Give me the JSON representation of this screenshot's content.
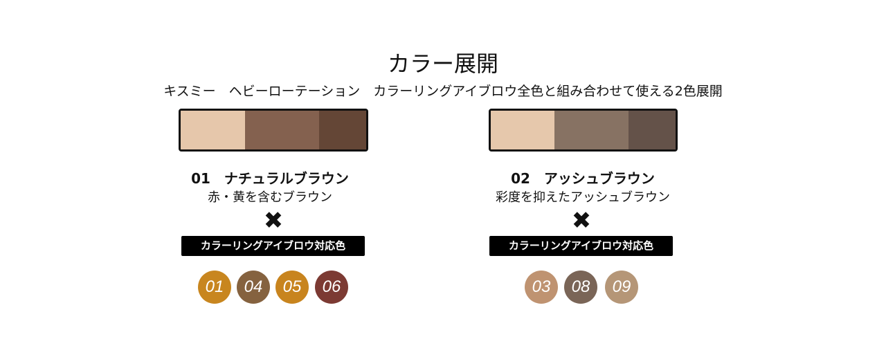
{
  "title": "カラー展開",
  "subtitle": "キスミー　ヘビーローテーション　カラーリングアイブロウ全色と組み合わせて使える2色展開",
  "products": [
    {
      "name": "01　ナチュラルブラウン",
      "description": "赤・黄を含むブラウン",
      "cross": "✖",
      "compat_label": "カラーリングアイブロウ対応色",
      "palette_colors": [
        "#e6c7ab",
        "#84614f",
        "#644636"
      ],
      "shades": [
        {
          "label": "01",
          "color": "#c8861f"
        },
        {
          "label": "04",
          "color": "#85623f"
        },
        {
          "label": "05",
          "color": "#c8841e"
        },
        {
          "label": "06",
          "color": "#7c3a33"
        }
      ]
    },
    {
      "name": "02　アッシュブラウン",
      "description": "彩度を抑えたアッシュブラウン",
      "cross": "✖",
      "compat_label": "カラーリングアイブロウ対応色",
      "palette_colors": [
        "#e6c8ac",
        "#877263",
        "#645249"
      ],
      "shades": [
        {
          "label": "03",
          "color": "#bf9371"
        },
        {
          "label": "08",
          "color": "#7a6557"
        },
        {
          "label": "09",
          "color": "#b59677"
        }
      ]
    }
  ]
}
